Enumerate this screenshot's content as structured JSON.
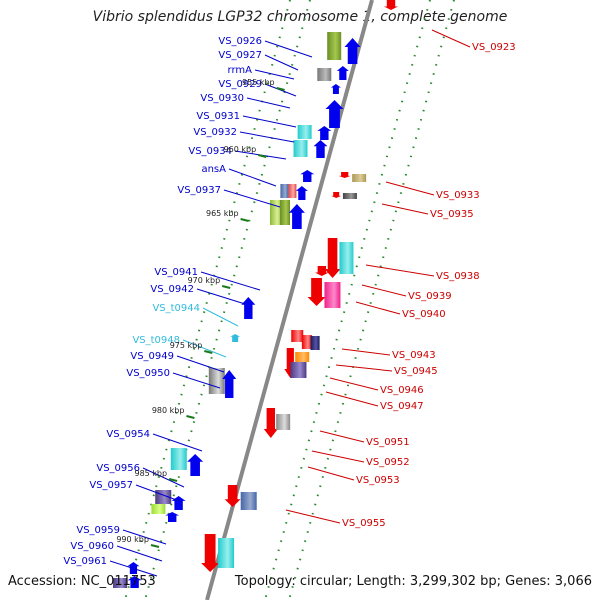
{
  "title": "Vibrio splendidus LGP32 chromosome 1, complete genome",
  "accession": "Accession: NC_011753",
  "summary": "Topology: circular; Length: 3,299,302 bp; Genes: 3,066",
  "scale_ticks": [
    "955 kbp",
    "960 kbp",
    "965 kbp",
    "970 kbp",
    "975 kbp",
    "980 kbp",
    "985 kbp",
    "990 kbp"
  ],
  "colors": {
    "forward_label": "#0000cc",
    "reverse_label": "#cc0000",
    "rna_label": "#33bbdd",
    "backbone": "#888888",
    "track_dots": "#2a8a2a",
    "forward_strand_icon": "blue-arrow",
    "reverse_strand_icon": "red-arrow"
  },
  "forward_genes": [
    "VS_0926",
    "VS_0927",
    "rrmA",
    "VS_0929",
    "VS_0930",
    "VS_0931",
    "VS_0932",
    "VS_0934",
    "ansA",
    "VS_0937",
    "VS_0941",
    "VS_0942",
    "VS_t0944",
    "VS_t0948",
    "VS_0949",
    "VS_0950",
    "VS_0954",
    "VS_0956",
    "VS_0957",
    "VS_0959",
    "VS_0960",
    "VS_0961"
  ],
  "reverse_genes": [
    "VS_0923",
    "VS_0933",
    "VS_0935",
    "VS_0938",
    "VS_0939",
    "VS_0940",
    "VS_0943",
    "VS_0945",
    "VS_0946",
    "VS_0947",
    "VS_0951",
    "VS_0952",
    "VS_0953",
    "VS_0955"
  ]
}
